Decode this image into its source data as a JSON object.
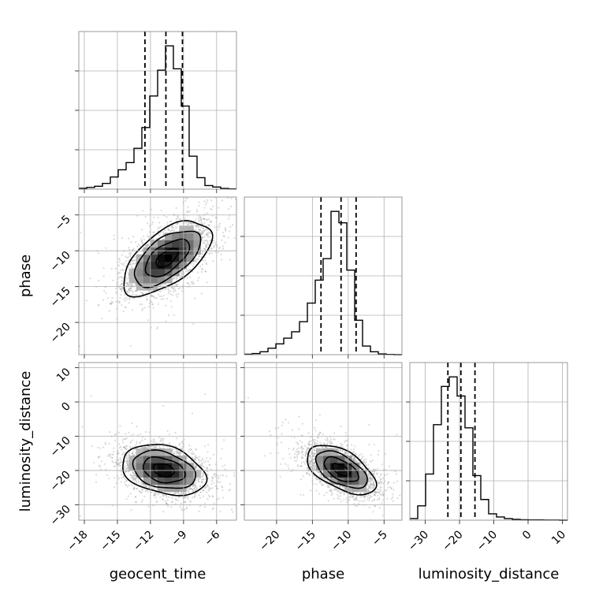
{
  "chart_data": {
    "type": "corner",
    "parameters": [
      "geocent_time",
      "phase",
      "luminosity_distance"
    ],
    "grid": true,
    "ticks": {
      "geocent_time": [
        -18,
        -15,
        -12,
        -9,
        -6
      ],
      "phase": [
        -20,
        -15,
        -10,
        -5
      ],
      "luminosity_distance": [
        -30,
        -20,
        -10,
        0,
        10
      ]
    },
    "tick_labels": {
      "geocent_time": [
        "−18",
        "−15",
        "−12",
        "−9",
        "−6"
      ],
      "phase": [
        "−20",
        "−15",
        "−10",
        "−5"
      ],
      "luminosity_distance": [
        "−30",
        "−20",
        "−10",
        "0",
        "10"
      ]
    },
    "ranges": {
      "geocent_time": [
        -18.5,
        -4.2
      ],
      "phase": [
        -24.5,
        -2.5
      ],
      "luminosity_distance": [
        -34.5,
        11.5
      ]
    },
    "quantiles": {
      "geocent_time": [
        -12.5,
        -10.6,
        -9.1
      ],
      "phase": [
        -13.8,
        -11.0,
        -8.9
      ],
      "luminosity_distance": [
        -23.4,
        -19.6,
        -15.5
      ]
    },
    "histograms": {
      "geocent_time": {
        "edges": [
          -18.5,
          -17.785,
          -17.07,
          -16.355,
          -15.64,
          -14.925,
          -14.21,
          -13.495,
          -12.78,
          -12.065,
          -11.35,
          -10.635,
          -9.92,
          -9.205,
          -8.49,
          -7.775,
          -7.06,
          -6.345,
          -5.63,
          -4.915,
          -4.2
        ],
        "counts": [
          0.6,
          1.2,
          2.0,
          4.0,
          8.5,
          13.5,
          18.5,
          28.5,
          43.0,
          65.0,
          83.0,
          100.0,
          84.0,
          58.0,
          23.0,
          8.0,
          2.5,
          1.5,
          0.5,
          0.2
        ]
      },
      "phase": {
        "edges": [
          -24.5,
          -23.4,
          -22.3,
          -21.2,
          -20.1,
          -19.0,
          -17.9,
          -16.8,
          -15.7,
          -14.6,
          -13.5,
          -12.4,
          -11.3,
          -10.2,
          -9.1,
          -8.0,
          -6.9,
          -5.8,
          -4.7,
          -3.6,
          -2.5
        ],
        "counts": [
          0.3,
          0.8,
          2.0,
          4.5,
          7.5,
          11.5,
          16.0,
          23.0,
          36.0,
          52.0,
          67.0,
          100.0,
          92.0,
          59.0,
          24.0,
          6.0,
          2.0,
          0.5,
          0.2,
          0.0
        ]
      },
      "luminosity_distance": {
        "edges": [
          -34.5,
          -32.2,
          -29.9,
          -27.6,
          -25.3,
          -23.0,
          -20.7,
          -18.4,
          -16.1,
          -13.8,
          -11.5,
          -9.2,
          -6.9,
          -4.6,
          -2.3,
          0.0,
          2.3,
          4.6,
          6.9,
          9.2,
          11.5
        ],
        "counts": [
          1.0,
          9.0,
          29.0,
          60.0,
          84.0,
          90.0,
          78.0,
          58.0,
          28.0,
          13.0,
          4.0,
          2.0,
          1.0,
          0.5,
          0.3,
          0.2,
          0.2,
          0.1,
          0.1,
          0.0
        ]
      }
    },
    "scatter_2d": [
      {
        "x": "geocent_time",
        "y": "phase",
        "center": [
          -10.5,
          -11.0
        ],
        "sigma": [
          2.0,
          2.6
        ],
        "rho": 0.6
      },
      {
        "x": "geocent_time",
        "y": "luminosity_distance",
        "center": [
          -10.8,
          -19.9
        ],
        "sigma": [
          1.9,
          3.7
        ],
        "rho": -0.3
      },
      {
        "x": "phase",
        "y": "luminosity_distance",
        "center": [
          -11.0,
          -19.8
        ],
        "sigma": [
          2.4,
          3.6
        ],
        "rho": -0.55
      }
    ],
    "contour_levels_sigma": [
      0.5,
      1.0,
      1.5,
      2.0
    ]
  }
}
